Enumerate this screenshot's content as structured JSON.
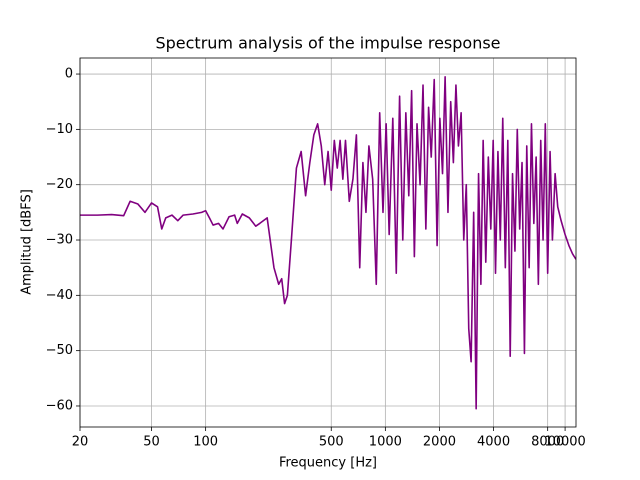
{
  "chart_data": {
    "type": "line",
    "title": "Spectrum analysis of the impulse response",
    "x_label": "Frequency [Hz]",
    "y_label": "Amplitud [dBFS]",
    "x_scale": "log",
    "grid": true,
    "xlim": [
      20,
      11500
    ],
    "ylim": [
      -63.8,
      2.9
    ],
    "xticks": [
      20,
      50,
      100,
      500,
      1000,
      2000,
      4000,
      8000,
      10000
    ],
    "yticks": [
      0,
      {
        "value": -10,
        "label": "−10"
      },
      {
        "value": -20,
        "label": "−20"
      },
      {
        "value": -30,
        "label": "−30"
      },
      {
        "value": -40,
        "label": "−40"
      },
      {
        "value": -50,
        "label": "−50"
      },
      {
        "value": -60,
        "label": "−60"
      }
    ],
    "x": [
      20,
      25,
      30,
      35,
      38,
      42,
      46,
      50,
      54,
      57,
      60,
      65,
      70,
      75,
      85,
      95,
      100,
      105,
      110,
      118,
      125,
      135,
      145,
      150,
      160,
      175,
      190,
      200,
      220,
      240,
      255,
      265,
      275,
      285,
      300,
      320,
      340,
      360,
      380,
      400,
      420,
      440,
      460,
      480,
      500,
      520,
      540,
      560,
      580,
      600,
      630,
      660,
      690,
      720,
      750,
      780,
      810,
      850,
      890,
      930,
      970,
      1010,
      1050,
      1100,
      1150,
      1200,
      1250,
      1300,
      1350,
      1400,
      1450,
      1500,
      1560,
      1620,
      1680,
      1740,
      1800,
      1870,
      1940,
      2010,
      2080,
      2150,
      2230,
      2310,
      2390,
      2470,
      2550,
      2640,
      2730,
      2820,
      2910,
      3000,
      3100,
      3200,
      3300,
      3400,
      3500,
      3620,
      3740,
      3860,
      3980,
      4100,
      4230,
      4360,
      4500,
      4650,
      4800,
      4950,
      5100,
      5260,
      5420,
      5590,
      5760,
      5940,
      6120,
      6310,
      6500,
      6700,
      6900,
      7100,
      7320,
      7540,
      7760,
      8000,
      8250,
      8500,
      8800,
      9100,
      9500,
      10000,
      10500,
      11000,
      11500
    ],
    "series": [
      {
        "color": "#800080",
        "values": [
          -25.5,
          -25.5,
          -25.4,
          -25.6,
          -23,
          -23.5,
          -25,
          -23.3,
          -24,
          -28,
          -26,
          -25.5,
          -26.5,
          -25.5,
          -25.3,
          -25,
          -24.7,
          -26,
          -27.3,
          -27,
          -28,
          -25.8,
          -25.5,
          -27,
          -25.3,
          -26,
          -27.5,
          -27,
          -26,
          -35,
          -38,
          -37,
          -41.5,
          -40,
          -30,
          -17,
          -14,
          -22,
          -16,
          -11,
          -9,
          -13,
          -20,
          -14,
          -21,
          -12,
          -17,
          -12,
          -19,
          -12,
          -23,
          -19,
          -11,
          -35,
          -16,
          -25,
          -13,
          -19,
          -38,
          -7,
          -25,
          -9,
          -29,
          -8,
          -36,
          -4,
          -30,
          -7,
          -22,
          -3,
          -33,
          -9,
          -20,
          -2,
          -28,
          -6,
          -15,
          -1,
          -31,
          -8,
          -18,
          -0.5,
          -25,
          -5,
          -16,
          -2,
          -13,
          -7,
          -30,
          -20,
          -46,
          -52,
          -25,
          -60.5,
          -18,
          -38,
          -12,
          -34,
          -15,
          -28,
          -12,
          -36,
          -14,
          -30,
          -8,
          -35,
          -12,
          -51,
          -18,
          -32,
          -10,
          -28,
          -16,
          -50.5,
          -13,
          -35,
          -9,
          -27,
          -15,
          -38,
          -12,
          -30,
          -9,
          -36,
          -14,
          -30,
          -18,
          -24,
          -26.5,
          -29,
          -31,
          -32.5,
          -33.5
        ]
      }
    ]
  }
}
